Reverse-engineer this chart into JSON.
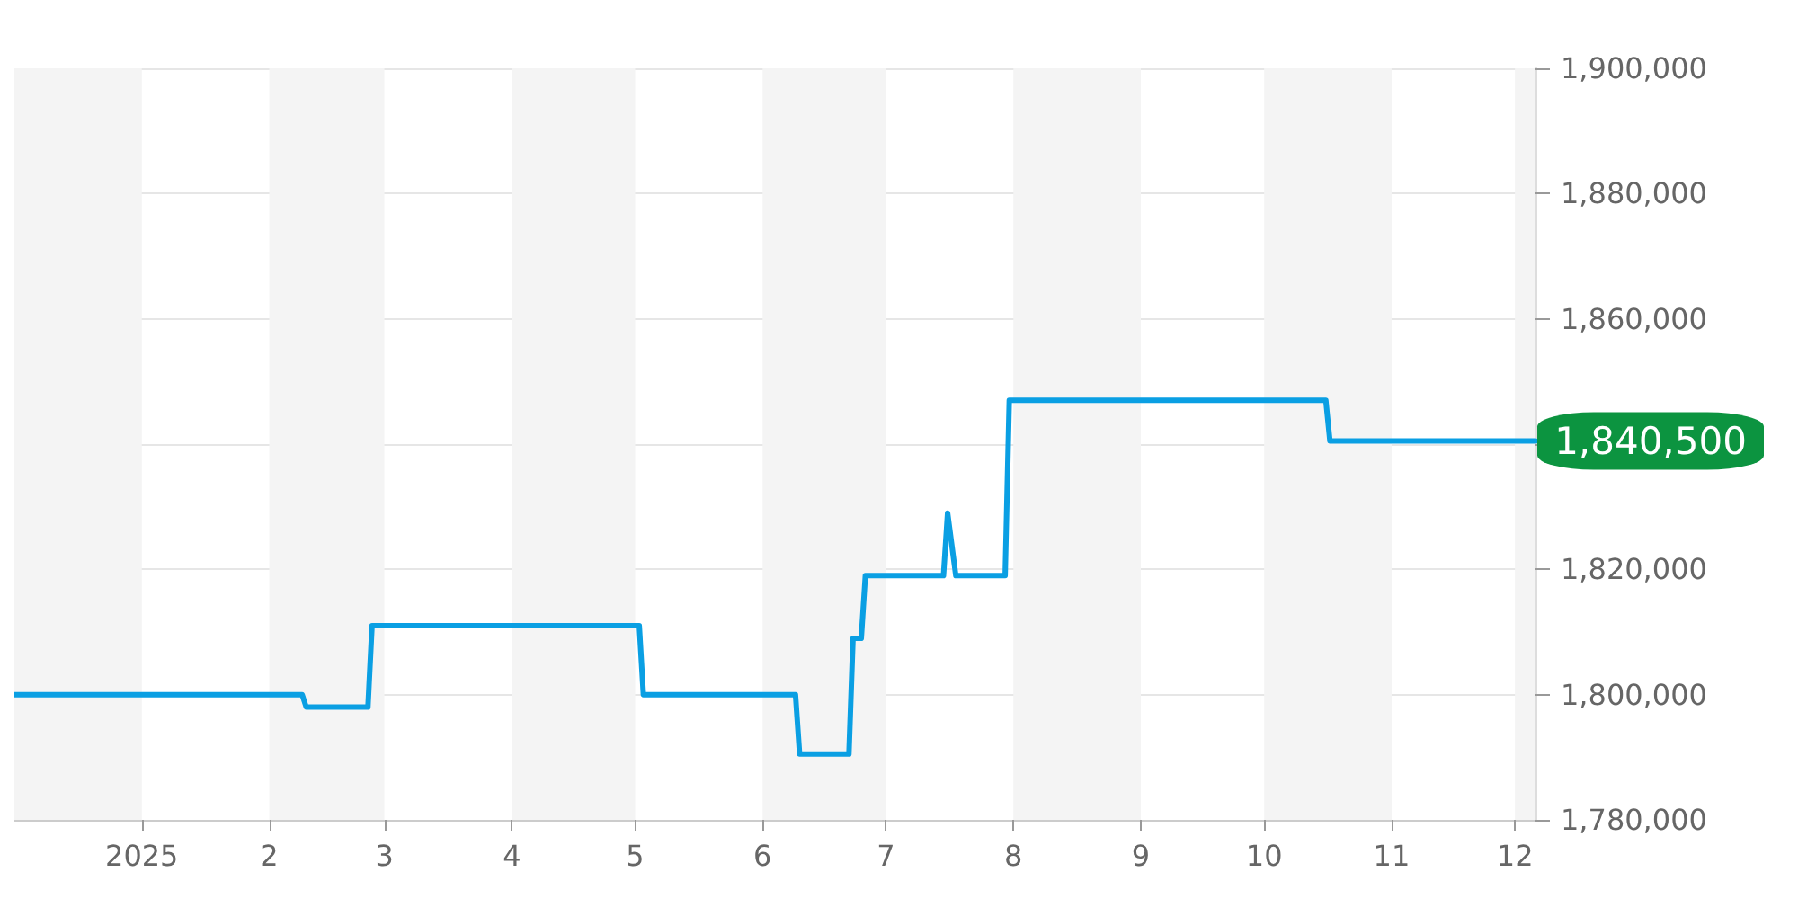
{
  "chart_data": {
    "type": "line",
    "x": [
      "2024-12-01",
      "2025-02-09",
      "2025-02-10",
      "2025-02-25",
      "2025-02-26",
      "2025-05-02",
      "2025-05-03",
      "2025-06-09",
      "2025-06-10",
      "2025-06-22",
      "2025-06-23",
      "2025-06-25",
      "2025-06-26",
      "2025-07-15",
      "2025-07-16",
      "2025-07-18",
      "2025-07-30",
      "2025-07-31",
      "2025-10-16",
      "2025-10-17",
      "2025-12-06"
    ],
    "series": [
      {
        "color": "#0a9fe3",
        "values": [
          1800000,
          1800000,
          1798000,
          1798000,
          1811000,
          1811000,
          1800000,
          1800000,
          1790500,
          1790500,
          1809000,
          1809000,
          1819000,
          1819000,
          1829000,
          1819000,
          1819000,
          1847000,
          1847000,
          1840500,
          1840500
        ]
      }
    ],
    "xlim": [
      "2024-12-01",
      "2025-12-06"
    ],
    "xticks": [
      {
        "value": "2025-01-01",
        "label": "2025"
      },
      {
        "value": "2025-02-01",
        "label": "2"
      },
      {
        "value": "2025-03-01",
        "label": "3"
      },
      {
        "value": "2025-04-01",
        "label": "4"
      },
      {
        "value": "2025-05-01",
        "label": "5"
      },
      {
        "value": "2025-06-01",
        "label": "6"
      },
      {
        "value": "2025-07-01",
        "label": "7"
      },
      {
        "value": "2025-08-01",
        "label": "8"
      },
      {
        "value": "2025-09-01",
        "label": "9"
      },
      {
        "value": "2025-10-01",
        "label": "10"
      },
      {
        "value": "2025-11-01",
        "label": "11"
      },
      {
        "value": "2025-12-01",
        "label": "12"
      }
    ],
    "ylim": [
      1780000,
      1900000
    ],
    "yticks": [
      {
        "value": 1780000,
        "label": "1,780,000"
      },
      {
        "value": 1800000,
        "label": "1,800,000"
      },
      {
        "value": 1820000,
        "label": "1,820,000"
      },
      {
        "value": 1840000,
        "label": null
      },
      {
        "value": 1860000,
        "label": "1,860,000"
      },
      {
        "value": 1880000,
        "label": "1,880,000"
      },
      {
        "value": 1900000,
        "label": "1,900,000"
      }
    ],
    "bands": [
      {
        "axis": "x",
        "from": "2024-12-01",
        "to": "2025-01-01",
        "color": "#f4f4f4"
      },
      {
        "axis": "x",
        "from": "2025-02-01",
        "to": "2025-03-01",
        "color": "#f4f4f4"
      },
      {
        "axis": "x",
        "from": "2025-04-01",
        "to": "2025-05-01",
        "color": "#f4f4f4"
      },
      {
        "axis": "x",
        "from": "2025-06-01",
        "to": "2025-07-01",
        "color": "#f4f4f4"
      },
      {
        "axis": "x",
        "from": "2025-08-01",
        "to": "2025-09-01",
        "color": "#f4f4f4"
      },
      {
        "axis": "x",
        "from": "2025-10-01",
        "to": "2025-11-01",
        "color": "#f4f4f4"
      },
      {
        "axis": "x",
        "from": "2025-12-01",
        "to": "2025-12-06",
        "color": "#f4f4f4"
      }
    ],
    "annotations": [
      {
        "text": "1,840,500",
        "x": "2025-12-06",
        "y": 1840500
      }
    ],
    "grid": "y",
    "marker": "none",
    "line_style": "solid"
  }
}
